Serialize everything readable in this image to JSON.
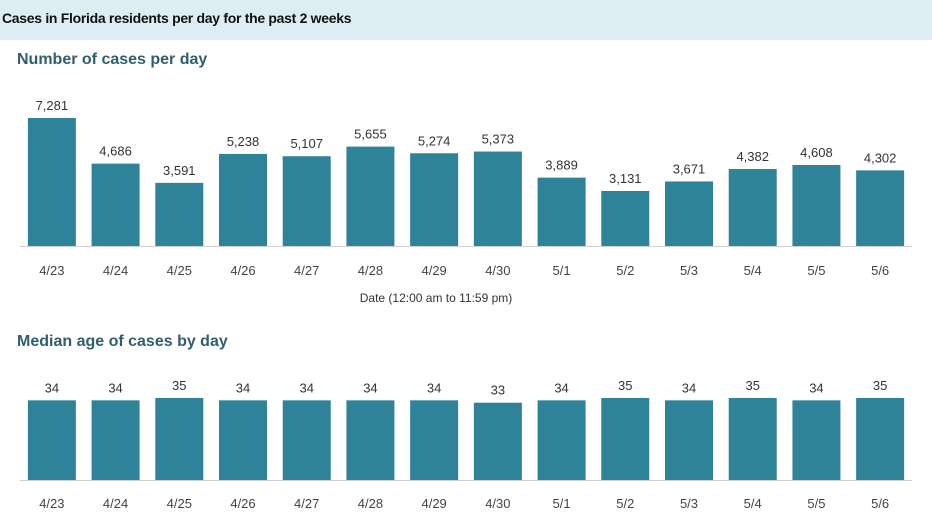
{
  "header": {
    "title": "Cases in Florida residents per day for the past 2 weeks"
  },
  "colors": {
    "bar": "#2f8399",
    "header_bg": "#dceef3",
    "section_title": "#2f5f6e"
  },
  "chart_data": [
    {
      "type": "bar",
      "title": "Number of cases per day",
      "categories": [
        "4/23",
        "4/24",
        "4/25",
        "4/26",
        "4/27",
        "4/28",
        "4/29",
        "4/30",
        "5/1",
        "5/2",
        "5/3",
        "5/4",
        "5/5",
        "5/6"
      ],
      "values": [
        7281,
        4686,
        3591,
        5238,
        5107,
        5655,
        5274,
        5373,
        3889,
        3131,
        3671,
        4382,
        4608,
        4302
      ],
      "value_labels": [
        "7,281",
        "4,686",
        "3,591",
        "5,238",
        "5,107",
        "5,655",
        "5,274",
        "5,373",
        "3,889",
        "3,131",
        "3,671",
        "4,382",
        "4,608",
        "4,302"
      ],
      "xlabel": "Date (12:00 am to 11:59 pm)",
      "ylabel": "",
      "ylim": [
        0,
        7281
      ]
    },
    {
      "type": "bar",
      "title": "Median age of cases by day",
      "categories": [
        "4/23",
        "4/24",
        "4/25",
        "4/26",
        "4/27",
        "4/28",
        "4/29",
        "4/30",
        "5/1",
        "5/2",
        "5/3",
        "5/4",
        "5/5",
        "5/6"
      ],
      "values": [
        34,
        34,
        35,
        34,
        34,
        34,
        34,
        33,
        34,
        35,
        34,
        35,
        34,
        35
      ],
      "value_labels": [
        "34",
        "34",
        "35",
        "34",
        "34",
        "34",
        "34",
        "33",
        "34",
        "35",
        "34",
        "35",
        "34",
        "35"
      ],
      "xlabel": "",
      "ylabel": "",
      "ylim": [
        0,
        35
      ]
    }
  ]
}
